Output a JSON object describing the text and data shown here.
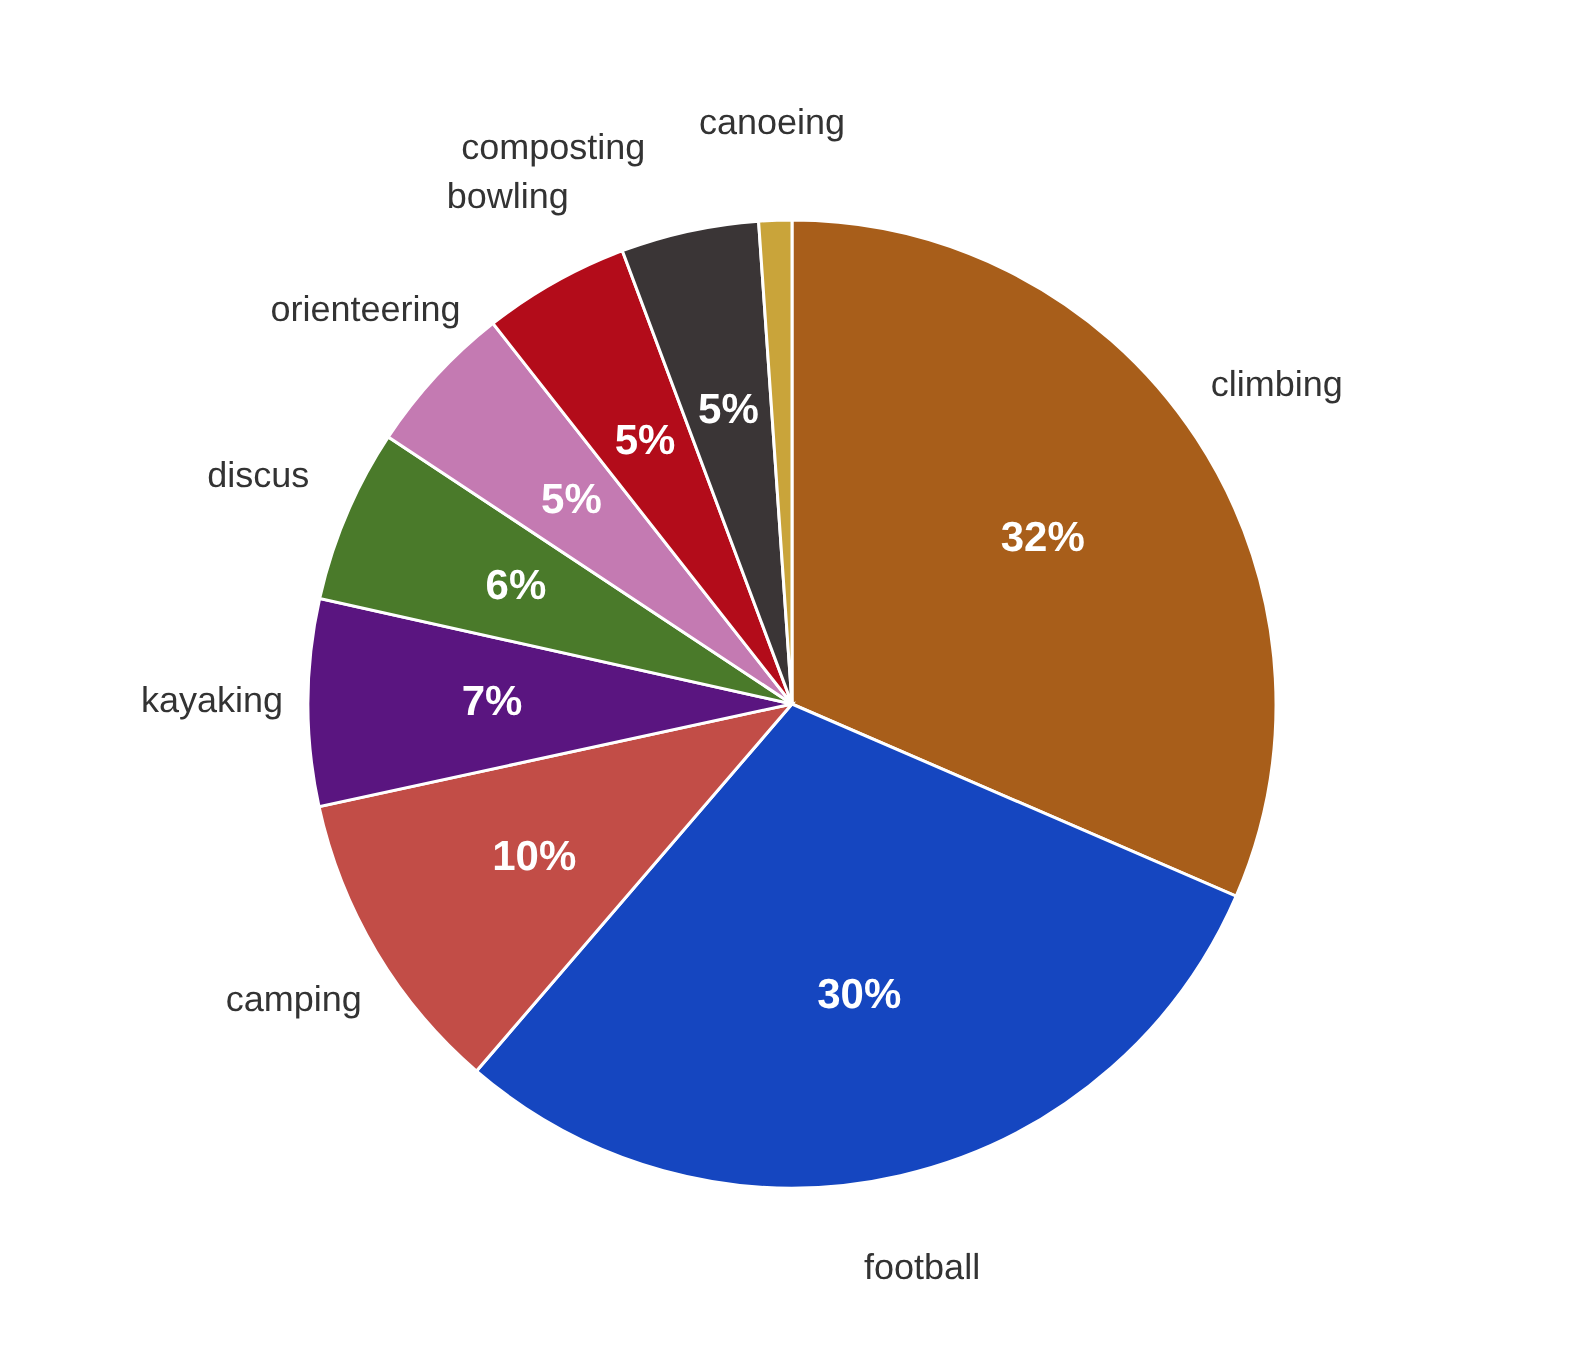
{
  "chart_data": {
    "type": "pie",
    "categories": [
      "climbing",
      "football",
      "camping",
      "kayaking",
      "discus",
      "orienteering",
      "bowling",
      "composting",
      "canoeing"
    ],
    "values": [
      31.5,
      29.8,
      10.3,
      6.9,
      5.8,
      5.1,
      4.9,
      4.6,
      1.1
    ],
    "value_labels": [
      "32%",
      "30%",
      "10%",
      "7%",
      "6%",
      "5%",
      "5%",
      "5%",
      null
    ],
    "colors": [
      "#a85e1a",
      "#1546c0",
      "#c24d47",
      "#5a1580",
      "#4a7a2a",
      "#c47ab2",
      "#b30c1a",
      "#3a3536",
      "#c9a43a"
    ]
  }
}
